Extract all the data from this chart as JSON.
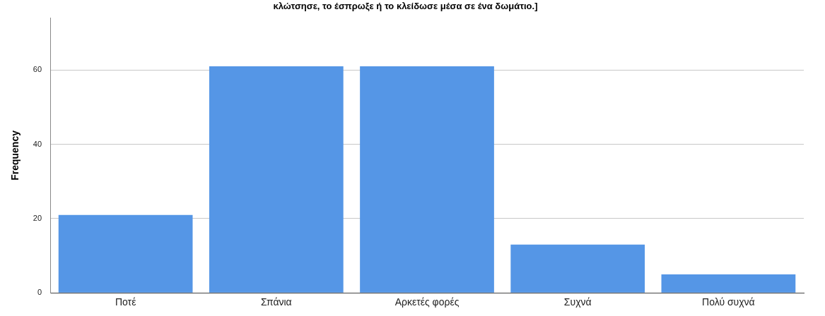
{
  "chart_data": {
    "type": "bar",
    "title": "κλώτσησε, το έσπρωξε ή το κλείδωσε μέσα σε ένα δωμάτιο.]",
    "ylabel": "Frequency",
    "categories": [
      "Ποτέ",
      "Σπάνια",
      "Αρκετές φορές",
      "Συχνά",
      "Πολύ συχνά"
    ],
    "values": [
      21,
      61,
      61,
      13,
      5
    ],
    "color": "#5596e6",
    "ylim": [
      0,
      74
    ],
    "yticks": [
      0,
      20,
      40,
      60
    ],
    "grid": "y"
  }
}
